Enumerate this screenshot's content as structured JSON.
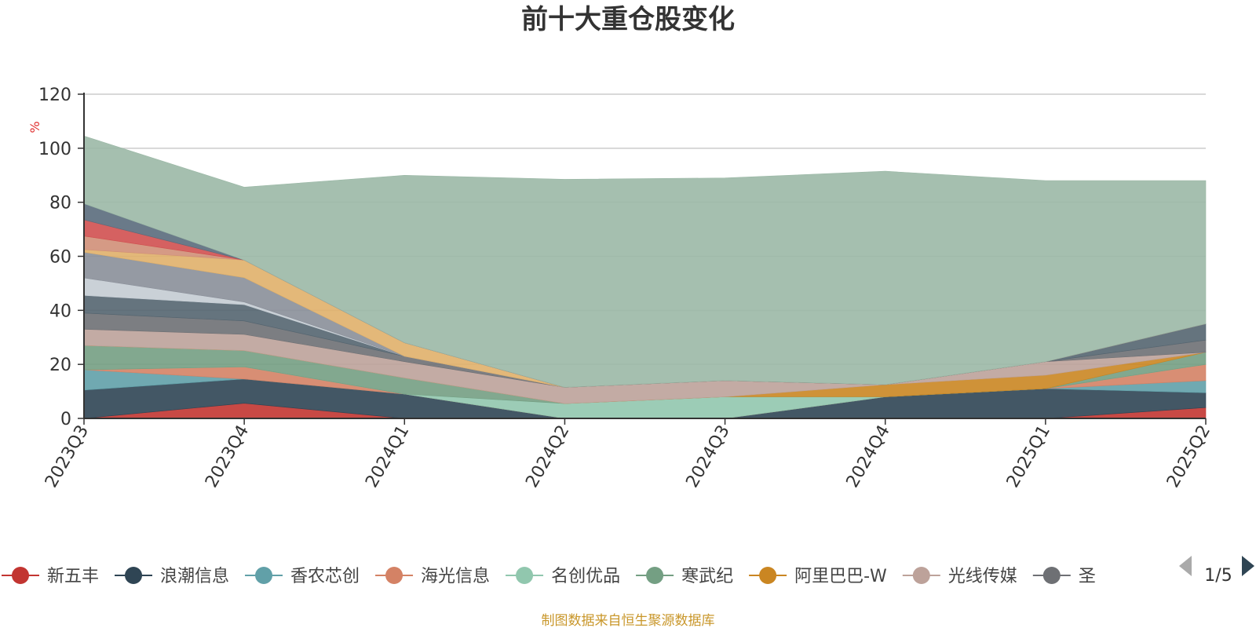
{
  "chart_data": {
    "type": "area",
    "title": "前十大重仓股变化",
    "ylabel": "%",
    "ylim": [
      0,
      120
    ],
    "yticks": [
      0,
      20,
      40,
      60,
      80,
      100,
      120
    ],
    "grid": true,
    "categories": [
      "2023Q3",
      "2023Q4",
      "2024Q1",
      "2024Q2",
      "2024Q3",
      "2024Q4",
      "2025Q1",
      "2025Q2"
    ],
    "series": [
      {
        "name": "新五丰",
        "color": "#c23531",
        "values": [
          0,
          5.6,
          0,
          0,
          0,
          0,
          0,
          4
        ]
      },
      {
        "name": "浪潮信息",
        "color": "#2f4554",
        "values": [
          10.5,
          9,
          9,
          0,
          0,
          8,
          11,
          5.5
        ]
      },
      {
        "name": "香农芯创",
        "color": "#61a0a8",
        "values": [
          7.5,
          0,
          0,
          0,
          0,
          0,
          0,
          4.5
        ]
      },
      {
        "name": "海光信息",
        "color": "#d48265",
        "values": [
          0,
          4.5,
          0,
          0,
          0,
          0,
          0,
          6
        ]
      },
      {
        "name": "名创优品",
        "color": "#91c7ae",
        "values": [
          0,
          0,
          0,
          5.5,
          8,
          0,
          0,
          0
        ]
      },
      {
        "name": "寒武纪",
        "color": "#749f83",
        "values": [
          9,
          6,
          6,
          0,
          0,
          0,
          0,
          4.5
        ]
      },
      {
        "name": "阿里巴巴-W",
        "color": "#ca8622",
        "values": [
          0,
          0,
          0,
          0,
          0,
          4.5,
          5,
          0
        ]
      },
      {
        "name": "光线传媒",
        "color": "#bda29a",
        "values": [
          6,
          6,
          6,
          6,
          6,
          0,
          5,
          0
        ]
      },
      {
        "name": "圣邦股份",
        "color": "#6e7074",
        "values": [
          6,
          5,
          2,
          0,
          0,
          0,
          0,
          4.5
        ]
      },
      {
        "name": "",
        "color": "#546570",
        "values": [
          6.5,
          6,
          0,
          0,
          0,
          0,
          0,
          6
        ]
      },
      {
        "name": "",
        "color": "#c4ccd3",
        "values": [
          6.5,
          1,
          0,
          0,
          0,
          0,
          0,
          0
        ]
      },
      {
        "name": "",
        "color": "#8a8f99",
        "values": [
          9.5,
          9,
          0,
          0,
          0,
          0,
          0,
          0
        ]
      },
      {
        "name": "",
        "color": "#e0b06a",
        "values": [
          1,
          6.5,
          5,
          0,
          0,
          0,
          0,
          0
        ]
      },
      {
        "name": "",
        "color": "#d08f78",
        "values": [
          5,
          0,
          0,
          0,
          0,
          0,
          0,
          0
        ]
      },
      {
        "name": "",
        "color": "#d05050",
        "values": [
          6,
          0,
          0,
          0,
          0,
          0,
          0,
          0
        ]
      },
      {
        "name": "",
        "color": "#5a6b7c",
        "values": [
          6,
          0,
          0,
          0,
          0,
          0,
          0,
          0
        ]
      },
      {
        "name": "",
        "color": "#9bb8a6",
        "values": [
          25,
          27,
          62,
          77,
          75,
          79,
          67,
          53
        ]
      }
    ]
  },
  "legend": {
    "items": [
      {
        "name": "新五丰",
        "color": "#c23531"
      },
      {
        "name": "浪潮信息",
        "color": "#2f4554"
      },
      {
        "name": "香农芯创",
        "color": "#61a0a8"
      },
      {
        "name": "海光信息",
        "color": "#d48265"
      },
      {
        "name": "名创优品",
        "color": "#91c7ae"
      },
      {
        "name": "寒武纪",
        "color": "#749f83"
      },
      {
        "name": "阿里巴巴-W",
        "color": "#ca8622"
      },
      {
        "name": "光线传媒",
        "color": "#bda29a"
      },
      {
        "name": "圣",
        "color": "#6e7074"
      }
    ],
    "page": "1/5"
  },
  "source": "制图数据来自恒生聚源数据库"
}
